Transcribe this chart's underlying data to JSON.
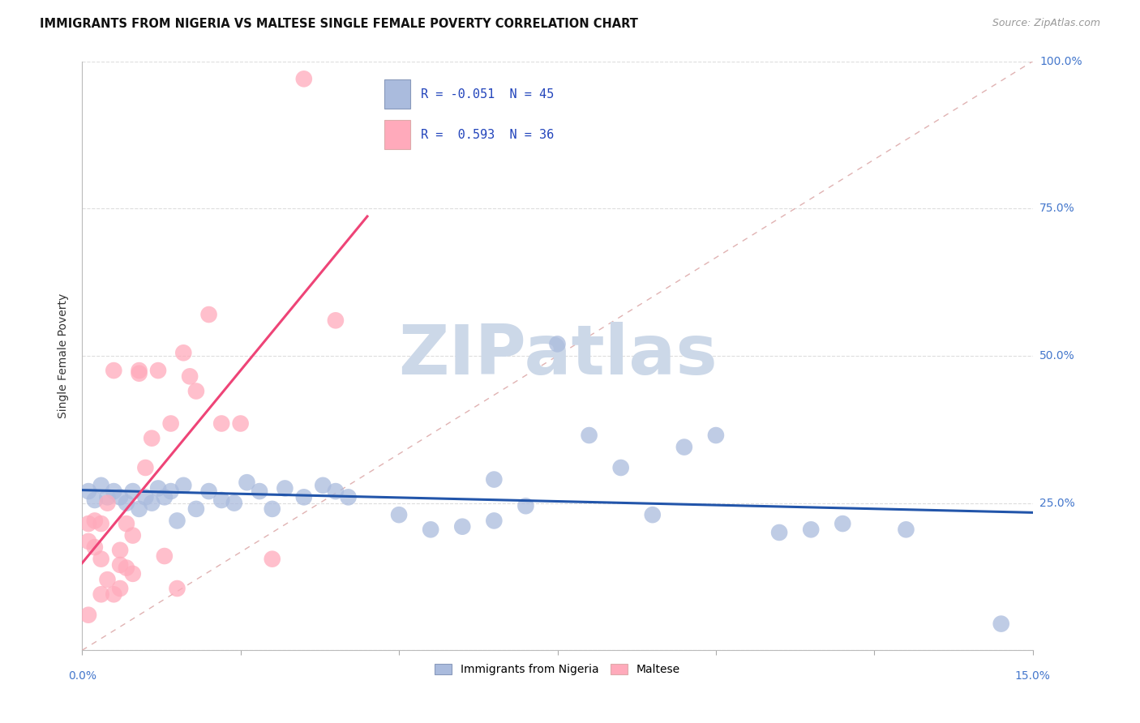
{
  "title": "IMMIGRANTS FROM NIGERIA VS MALTESE SINGLE FEMALE POVERTY CORRELATION CHART",
  "source": "Source: ZipAtlas.com",
  "ylabel": "Single Female Poverty",
  "legend1": "Immigrants from Nigeria",
  "legend2": "Maltese",
  "blue_color": "#aabbdd",
  "pink_color": "#ffaabb",
  "blue_line_color": "#2255aa",
  "pink_line_color": "#ee4477",
  "diag_line_color": "#ddaaaa",
  "watermark": "ZIPatlas",
  "watermark_color": "#ccd8e8",
  "blue_points_x": [
    0.001,
    0.002,
    0.003,
    0.004,
    0.005,
    0.006,
    0.007,
    0.008,
    0.009,
    0.01,
    0.011,
    0.012,
    0.013,
    0.014,
    0.015,
    0.016,
    0.018,
    0.02,
    0.022,
    0.024,
    0.026,
    0.028,
    0.03,
    0.032,
    0.035,
    0.038,
    0.04,
    0.042,
    0.05,
    0.055,
    0.06,
    0.065,
    0.065,
    0.07,
    0.075,
    0.08,
    0.085,
    0.09,
    0.095,
    0.1,
    0.11,
    0.115,
    0.12,
    0.13,
    0.145
  ],
  "blue_points_y": [
    0.27,
    0.255,
    0.28,
    0.26,
    0.27,
    0.26,
    0.25,
    0.27,
    0.24,
    0.26,
    0.25,
    0.275,
    0.26,
    0.27,
    0.22,
    0.28,
    0.24,
    0.27,
    0.255,
    0.25,
    0.285,
    0.27,
    0.24,
    0.275,
    0.26,
    0.28,
    0.27,
    0.26,
    0.23,
    0.205,
    0.21,
    0.22,
    0.29,
    0.245,
    0.52,
    0.365,
    0.31,
    0.23,
    0.345,
    0.365,
    0.2,
    0.205,
    0.215,
    0.205,
    0.045
  ],
  "pink_points_x": [
    0.001,
    0.001,
    0.001,
    0.002,
    0.002,
    0.003,
    0.003,
    0.003,
    0.004,
    0.004,
    0.005,
    0.005,
    0.006,
    0.006,
    0.006,
    0.007,
    0.007,
    0.008,
    0.008,
    0.009,
    0.009,
    0.01,
    0.011,
    0.012,
    0.013,
    0.014,
    0.015,
    0.016,
    0.017,
    0.018,
    0.02,
    0.022,
    0.025,
    0.03,
    0.035,
    0.04
  ],
  "pink_points_y": [
    0.215,
    0.185,
    0.06,
    0.22,
    0.175,
    0.215,
    0.155,
    0.095,
    0.25,
    0.12,
    0.475,
    0.095,
    0.145,
    0.17,
    0.105,
    0.215,
    0.14,
    0.195,
    0.13,
    0.475,
    0.47,
    0.31,
    0.36,
    0.475,
    0.16,
    0.385,
    0.105,
    0.505,
    0.465,
    0.44,
    0.57,
    0.385,
    0.385,
    0.155,
    0.97,
    0.56
  ],
  "xlim": [
    0.0,
    0.15
  ],
  "ylim": [
    0.0,
    1.0
  ]
}
